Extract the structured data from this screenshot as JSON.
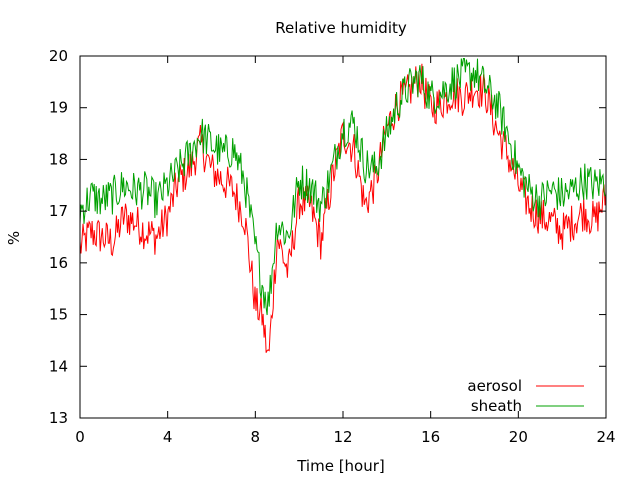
{
  "chart_data": {
    "type": "line",
    "title": "Relative humidity",
    "xlabel": "Time [hour]",
    "ylabel": "%",
    "xlim": [
      0,
      24
    ],
    "ylim": [
      13,
      20
    ],
    "xticks": [
      0,
      4,
      8,
      12,
      16,
      20,
      24
    ],
    "yticks": [
      13,
      14,
      15,
      16,
      17,
      18,
      19,
      20
    ],
    "grid": false,
    "legend_position": "bottom-right",
    "series": [
      {
        "name": "aerosol",
        "color": "#ff0000",
        "x": [
          0,
          0.5,
          1,
          1.5,
          2,
          2.5,
          3,
          3.5,
          4,
          4.5,
          5,
          5.5,
          6,
          6.5,
          7,
          7.5,
          8,
          8.3,
          8.6,
          9,
          9.5,
          10,
          10.5,
          11,
          11.5,
          12,
          12.5,
          13,
          13.5,
          14,
          14.5,
          15,
          15.5,
          16,
          16.5,
          17,
          17.5,
          18,
          18.5,
          19,
          19.5,
          20,
          20.5,
          21,
          21.5,
          22,
          22.5,
          23,
          23.5,
          24
        ],
        "values": [
          16.3,
          16.6,
          16.5,
          16.4,
          16.9,
          16.8,
          16.6,
          16.5,
          16.9,
          17.6,
          17.8,
          18.3,
          17.8,
          17.6,
          17.4,
          16.9,
          15.2,
          15.0,
          14.1,
          16.5,
          15.8,
          17.2,
          17.1,
          16.4,
          17.6,
          18.5,
          18.2,
          17.1,
          17.6,
          18.6,
          19.1,
          19.3,
          19.6,
          19.0,
          19.1,
          19.3,
          19.2,
          19.4,
          19.3,
          18.6,
          18.1,
          17.5,
          17.1,
          16.9,
          16.8,
          16.6,
          16.8,
          17.0,
          16.8,
          17.3
        ]
      },
      {
        "name": "sheath",
        "color": "#00a000",
        "x": [
          0,
          0.5,
          1,
          1.5,
          2,
          2.5,
          3,
          3.5,
          4,
          4.5,
          5,
          5.5,
          6,
          6.5,
          7,
          7.5,
          8,
          8.3,
          8.6,
          9,
          9.5,
          10,
          10.5,
          11,
          11.5,
          12,
          12.5,
          13,
          13.5,
          14,
          14.5,
          15,
          15.5,
          16,
          16.5,
          17,
          17.5,
          18,
          18.5,
          19,
          19.5,
          20,
          20.5,
          21,
          21.5,
          22,
          22.5,
          23,
          23.5,
          24
        ],
        "values": [
          17.0,
          17.3,
          17.2,
          17.3,
          17.5,
          17.4,
          17.4,
          17.2,
          17.5,
          17.8,
          18.1,
          18.5,
          18.3,
          18.1,
          18.2,
          17.6,
          16.3,
          15.6,
          15.2,
          16.8,
          16.5,
          17.6,
          17.5,
          17.1,
          17.8,
          18.6,
          18.7,
          17.9,
          17.8,
          18.5,
          19.1,
          19.4,
          19.6,
          19.2,
          19.3,
          19.5,
          19.6,
          19.7,
          19.4,
          19.1,
          18.5,
          17.8,
          17.4,
          17.2,
          17.4,
          17.3,
          17.4,
          17.6,
          17.5,
          17.6
        ]
      }
    ]
  }
}
